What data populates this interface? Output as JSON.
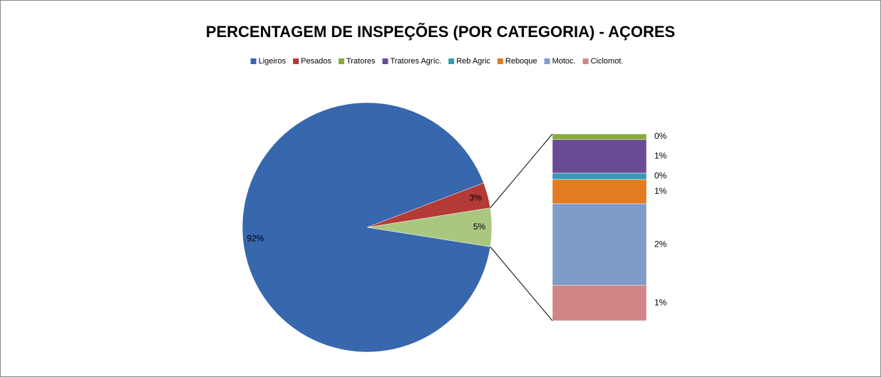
{
  "chart_data": {
    "type": "bar-of-pie",
    "title": "PERCENTAGEM DE INSPEÇÕES (POR CATEGORIA) - AÇORES",
    "categories": [
      "Ligeiros",
      "Pesados",
      "Tratores",
      "Tratores Agríc.",
      "Reb Agric",
      "Reboque",
      "Motoc.",
      "Ciclomot."
    ],
    "values": [
      91.7,
      3.3,
      0.15,
      0.9,
      0.17,
      0.65,
      2.18,
      0.95
    ],
    "value_labels": [
      "92%",
      "3%",
      "0%",
      "1%",
      "0%",
      "1%",
      "2%",
      "1%"
    ],
    "colors": [
      "#3767ac",
      "#b33a36",
      "#86ab3c",
      "#6a4b93",
      "#2f9cb8",
      "#e27b22",
      "#7f9cc9",
      "#d18584"
    ],
    "other_label": "5%",
    "other_color": "#abc67f",
    "legend": "top"
  }
}
